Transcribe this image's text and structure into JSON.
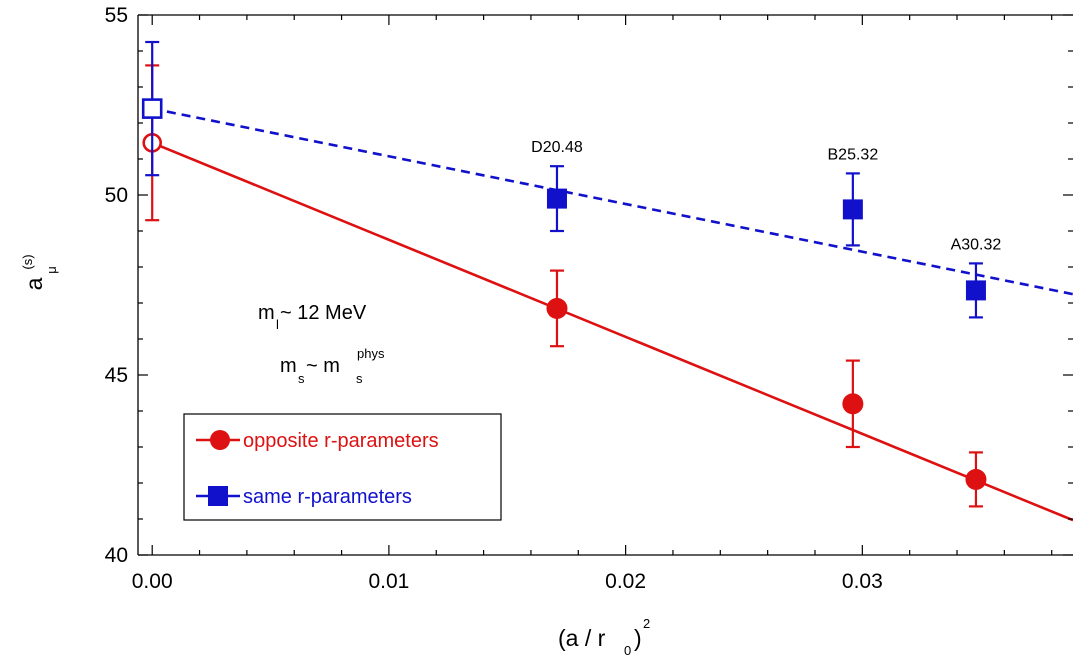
{
  "chart_data": {
    "type": "scatter",
    "xlabel": "(a / r0)^2",
    "ylabel": "a_mu^(s)",
    "xlim": [
      -0.0006,
      0.0389
    ],
    "ylim": [
      40,
      55
    ],
    "x_ticks": [
      0.0,
      0.01,
      0.02,
      0.03
    ],
    "x_tick_labels": [
      "0.00",
      "0.01",
      "0.02",
      "0.03"
    ],
    "y_ticks": [
      40,
      45,
      50,
      55
    ],
    "y_tick_labels": [
      "40",
      "45",
      "50",
      "55"
    ],
    "grid": false,
    "legend_position": "bottom-left",
    "annotations": {
      "ml_line": "m_l ~ 12 MeV",
      "ms_line": "m_s ~ m_s^phys"
    },
    "series": [
      {
        "name": "opposite r-parameters",
        "color": "#dd1111",
        "marker": "circle",
        "points": [
          {
            "x": 0.0171,
            "y": 46.85,
            "yerr": 1.05
          },
          {
            "x": 0.0296,
            "y": 44.2,
            "yerr": 1.2
          },
          {
            "x": 0.0348,
            "y": 42.1,
            "yerr": 0.75
          }
        ],
        "extrapolated": {
          "x": 0.0,
          "y": 51.45,
          "yerr": 2.15
        },
        "fit": {
          "intercept": 51.45,
          "slope": -269.5,
          "style": "solid"
        }
      },
      {
        "name": "same r-parameters",
        "color": "#1111cc",
        "marker": "square",
        "points": [
          {
            "x": 0.0171,
            "y": 49.9,
            "yerr": 0.9,
            "label": "D20.48"
          },
          {
            "x": 0.0296,
            "y": 49.6,
            "yerr": 1.0,
            "label": "B25.32"
          },
          {
            "x": 0.0348,
            "y": 47.35,
            "yerr": 0.75,
            "label": "A30.32"
          }
        ],
        "extrapolated": {
          "x": 0.0,
          "y": 52.4,
          "yerr": 1.85
        },
        "fit": {
          "intercept": 52.4,
          "slope": -132.5,
          "style": "dashed"
        }
      }
    ]
  },
  "text": {
    "ytitle_main": "a",
    "ytitle_sup": "(s)",
    "ytitle_sub": "μ",
    "xtitle_main": "(a / r",
    "xtitle_sub": "0",
    "xtitle_close": ")",
    "xtitle_sup": "2",
    "ml_m": "m",
    "ml_sub": "l",
    "ml_rest": " ~ 12 MeV",
    "ms_m": "m",
    "ms_sub": "s",
    "ms_tilde": " ~ m",
    "ms_sub2": "s",
    "ms_sup": "phys"
  }
}
